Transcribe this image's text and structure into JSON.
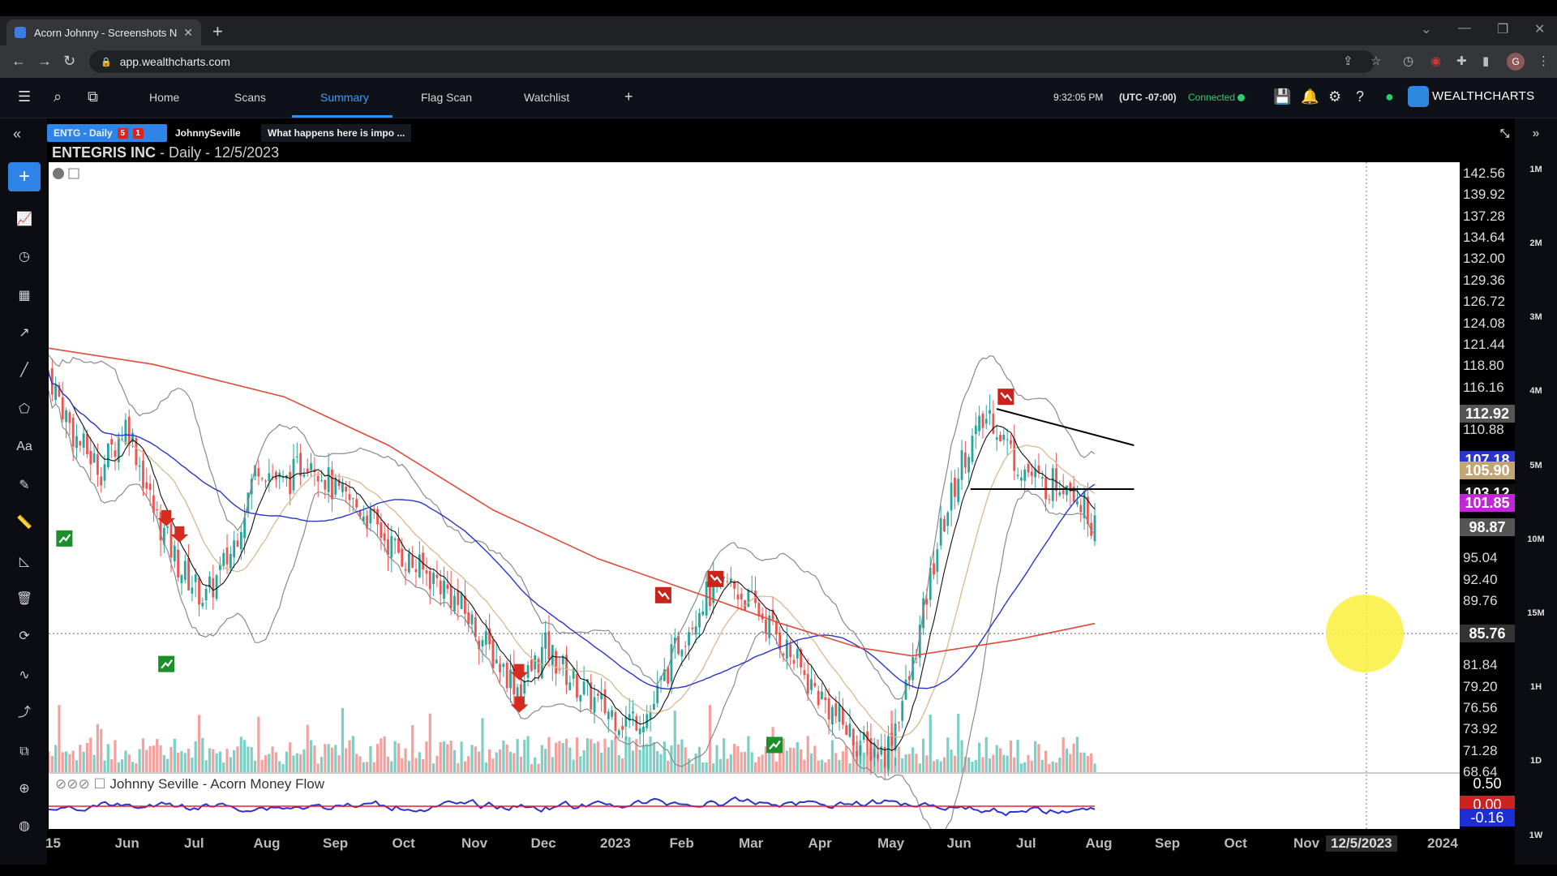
{
  "browser": {
    "tab_title": "Acorn Johnny - Screenshots NEW",
    "url": "app.wealthcharts.com",
    "profile_initial": "G"
  },
  "nav": {
    "items": [
      "Home",
      "Scans",
      "Summary",
      "Flag Scan",
      "Watchlist"
    ],
    "active": "Summary",
    "time": "9:32:05 PM",
    "timezone": "(UTC -07:00)",
    "status": "Connected",
    "brand": "WEALTHCHARTS"
  },
  "symbol_tabs": {
    "active_label": "ENTG - Daily",
    "badge_a": "5",
    "badge_b": "1",
    "tab2": "JohnnySeville",
    "tab3": "What happens here is impo ..."
  },
  "chart_title": {
    "name": "ENTEGRIS INC",
    "detail": "- Daily - 12/5/2023"
  },
  "intervals": [
    "1M",
    "2M",
    "3M",
    "4M",
    "5M",
    "10M",
    "15M",
    "1H",
    "1D",
    "1W"
  ],
  "indicator": {
    "label": "Johnny Seville - Acorn Money Flow",
    "ticks": [
      "0.50",
      "0.00"
    ],
    "current": "-0.16"
  },
  "colors": {
    "accent": "#2f84e8",
    "up": "#26a69a",
    "down": "#ef5350",
    "ma200": "#e04a3a",
    "ma_blue": "#2a35c9",
    "connected": "#2ecc71"
  },
  "chart_data": {
    "type": "candlestick",
    "symbol": "ENTG",
    "interval": "Daily",
    "y_ticks": [
      142.56,
      139.92,
      137.28,
      134.64,
      132.0,
      129.36,
      126.72,
      124.08,
      121.44,
      118.8,
      116.16,
      112.92,
      110.88,
      105.9,
      103.12,
      98.87,
      95.04,
      92.4,
      89.76,
      85.76,
      81.84,
      79.2,
      76.56,
      73.92,
      71.28,
      68.64
    ],
    "price_labels": [
      {
        "value": "112.92",
        "color": "#555555"
      },
      {
        "value": "107.18",
        "color": "#2a35c9"
      },
      {
        "value": "105.90",
        "color": "#c2a574"
      },
      {
        "value": "103.12",
        "color": "#111111"
      },
      {
        "value": "101.85",
        "color": "#c026d3"
      },
      {
        "value": "98.87",
        "color": "#555555"
      },
      {
        "value": "85.76",
        "color": "#333333"
      }
    ],
    "x_ticks": [
      "15",
      "Jun",
      "Jul",
      "Aug",
      "Sep",
      "Oct",
      "Nov",
      "Dec",
      "2023",
      "Feb",
      "Mar",
      "Apr",
      "May",
      "Jun",
      "Jul",
      "Aug",
      "Sep",
      "Oct",
      "Nov",
      "12/5/2023",
      "2024"
    ],
    "ylim": [
      68.64,
      142.56
    ],
    "close_path": [
      [
        0,
        118
      ],
      [
        0.02,
        110
      ],
      [
        0.04,
        106
      ],
      [
        0.06,
        112
      ],
      [
        0.08,
        101
      ],
      [
        0.1,
        94
      ],
      [
        0.12,
        90
      ],
      [
        0.14,
        96
      ],
      [
        0.16,
        107
      ],
      [
        0.18,
        104
      ],
      [
        0.2,
        108
      ],
      [
        0.22,
        103
      ],
      [
        0.24,
        101
      ],
      [
        0.26,
        97
      ],
      [
        0.28,
        94
      ],
      [
        0.3,
        92
      ],
      [
        0.32,
        88
      ],
      [
        0.34,
        83
      ],
      [
        0.36,
        79
      ],
      [
        0.38,
        84
      ],
      [
        0.4,
        80
      ],
      [
        0.42,
        77
      ],
      [
        0.44,
        75
      ],
      [
        0.46,
        76
      ],
      [
        0.48,
        84
      ],
      [
        0.5,
        90
      ],
      [
        0.52,
        92
      ],
      [
        0.54,
        89
      ],
      [
        0.56,
        85
      ],
      [
        0.58,
        80
      ],
      [
        0.6,
        76
      ],
      [
        0.62,
        72
      ],
      [
        0.64,
        71
      ],
      [
        0.66,
        81
      ],
      [
        0.68,
        97
      ],
      [
        0.7,
        108
      ],
      [
        0.72,
        113
      ],
      [
        0.74,
        107
      ],
      [
        0.76,
        104
      ],
      [
        0.78,
        105
      ],
      [
        0.8,
        99
      ]
    ],
    "ma200_path": [
      [
        0,
        121
      ],
      [
        0.08,
        119
      ],
      [
        0.18,
        115
      ],
      [
        0.26,
        109
      ],
      [
        0.34,
        101
      ],
      [
        0.42,
        95
      ],
      [
        0.5,
        90.5
      ],
      [
        0.56,
        87
      ],
      [
        0.62,
        84
      ],
      [
        0.66,
        83
      ],
      [
        0.7,
        84
      ],
      [
        0.74,
        85
      ],
      [
        0.8,
        87
      ]
    ],
    "trendlines": [
      {
        "from": [
          0.725,
          113.5
        ],
        "to": [
          0.83,
          109
        ]
      },
      {
        "from": [
          0.705,
          103.6
        ],
        "to": [
          0.83,
          103.6
        ]
      }
    ],
    "signals": [
      {
        "type": "bull-flag",
        "x": 0.012,
        "price": 97.5
      },
      {
        "type": "sell-arrow",
        "x": 0.09,
        "price": 100
      },
      {
        "type": "sell-arrow",
        "x": 0.1,
        "price": 98
      },
      {
        "type": "bull-flag",
        "x": 0.09,
        "price": 82
      },
      {
        "type": "sell-arrow",
        "x": 0.36,
        "price": 81
      },
      {
        "type": "sell-arrow",
        "x": 0.36,
        "price": 77
      },
      {
        "type": "bear-flag",
        "x": 0.47,
        "price": 90.5
      },
      {
        "type": "bear-flag",
        "x": 0.51,
        "price": 92.5
      },
      {
        "type": "bull-flag",
        "x": 0.555,
        "price": 72
      },
      {
        "type": "bear-flag",
        "x": 0.732,
        "price": 115
      }
    ]
  }
}
